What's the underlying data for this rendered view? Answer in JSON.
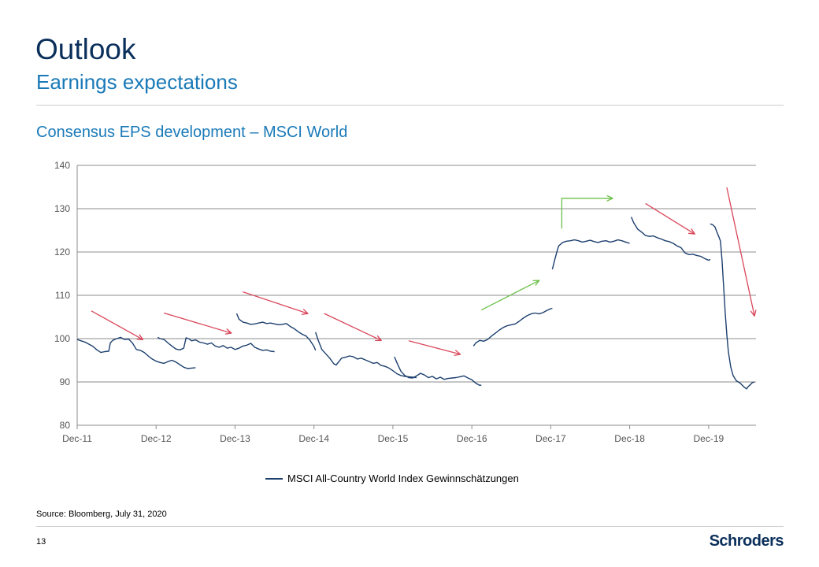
{
  "header": {
    "title": "Outlook",
    "subtitle": "Earnings expectations"
  },
  "chart_title": "Consensus EPS development – MSCI World",
  "chart_data": {
    "type": "line",
    "title": "Consensus EPS development – MSCI World",
    "xlabel": "",
    "ylabel": "",
    "ylim": [
      80,
      140
    ],
    "yticks": [
      80,
      90,
      100,
      110,
      120,
      130,
      140
    ],
    "xlim": [
      0,
      8.6
    ],
    "x_tick_labels": [
      "Dec-11",
      "Dec-12",
      "Dec-13",
      "Dec-14",
      "Dec-15",
      "Dec-16",
      "Dec-17",
      "Dec-18",
      "Dec-19"
    ],
    "grid": true,
    "legend": "bottom-center",
    "colors": {
      "line": "#1c3f6e",
      "up_arrow": "#6cc04a",
      "down_arrow": "#d9475a",
      "grid": "#8c8c8c"
    },
    "series": [
      {
        "name": "MSCI All-Country World Index Gewinnschätzungen",
        "segments": [
          [
            [
              0.0,
              99.8
            ],
            [
              0.05,
              99.5
            ],
            [
              0.1,
              99.2
            ],
            [
              0.15,
              98.7
            ],
            [
              0.2,
              98.2
            ],
            [
              0.25,
              97.4
            ],
            [
              0.3,
              96.8
            ],
            [
              0.35,
              97.0
            ],
            [
              0.4,
              97.1
            ],
            [
              0.42,
              99.0
            ],
            [
              0.45,
              99.6
            ],
            [
              0.5,
              100.0
            ],
            [
              0.55,
              100.3
            ],
            [
              0.6,
              99.8
            ],
            [
              0.65,
              99.9
            ],
            [
              0.7,
              99.0
            ],
            [
              0.75,
              97.5
            ],
            [
              0.8,
              97.3
            ],
            [
              0.85,
              96.8
            ],
            [
              0.9,
              96.0
            ],
            [
              0.95,
              95.3
            ],
            [
              1.0,
              94.8
            ],
            [
              1.05,
              94.5
            ],
            [
              1.1,
              94.3
            ],
            [
              1.15,
              94.7
            ],
            [
              1.2,
              95.0
            ],
            [
              1.25,
              94.6
            ],
            [
              1.3,
              94.0
            ],
            [
              1.35,
              93.4
            ],
            [
              1.4,
              93.1
            ],
            [
              1.45,
              93.2
            ],
            [
              1.5,
              93.3
            ]
          ],
          [
            [
              1.02,
              100.3
            ],
            [
              1.05,
              100.0
            ],
            [
              1.1,
              99.8
            ],
            [
              1.15,
              99.0
            ],
            [
              1.2,
              98.3
            ],
            [
              1.25,
              97.6
            ],
            [
              1.3,
              97.4
            ],
            [
              1.35,
              97.8
            ],
            [
              1.38,
              100.2
            ],
            [
              1.42,
              99.9
            ],
            [
              1.45,
              99.5
            ],
            [
              1.5,
              99.7
            ],
            [
              1.55,
              99.2
            ],
            [
              1.6,
              99.0
            ],
            [
              1.65,
              98.7
            ],
            [
              1.7,
              99.0
            ],
            [
              1.75,
              98.3
            ],
            [
              1.8,
              98.0
            ],
            [
              1.85,
              98.4
            ],
            [
              1.9,
              97.8
            ],
            [
              1.95,
              98.0
            ],
            [
              2.0,
              97.5
            ],
            [
              2.05,
              97.8
            ],
            [
              2.1,
              98.3
            ],
            [
              2.15,
              98.5
            ],
            [
              2.2,
              98.9
            ],
            [
              2.25,
              98.0
            ],
            [
              2.3,
              97.6
            ],
            [
              2.35,
              97.3
            ],
            [
              2.4,
              97.4
            ],
            [
              2.45,
              97.1
            ],
            [
              2.5,
              97.0
            ]
          ],
          [
            [
              2.02,
              105.8
            ],
            [
              2.05,
              104.5
            ],
            [
              2.1,
              103.8
            ],
            [
              2.15,
              103.6
            ],
            [
              2.2,
              103.3
            ],
            [
              2.25,
              103.4
            ],
            [
              2.3,
              103.6
            ],
            [
              2.35,
              103.8
            ],
            [
              2.4,
              103.5
            ],
            [
              2.45,
              103.6
            ],
            [
              2.5,
              103.4
            ],
            [
              2.55,
              103.2
            ],
            [
              2.6,
              103.3
            ],
            [
              2.65,
              103.5
            ],
            [
              2.7,
              102.8
            ],
            [
              2.75,
              102.3
            ],
            [
              2.8,
              101.6
            ],
            [
              2.85,
              101.0
            ],
            [
              2.9,
              100.6
            ],
            [
              2.95,
              99.6
            ],
            [
              3.0,
              98.2
            ],
            [
              3.02,
              97.3
            ]
          ],
          [
            [
              3.02,
              101.5
            ],
            [
              3.05,
              99.8
            ],
            [
              3.1,
              97.5
            ],
            [
              3.15,
              96.5
            ],
            [
              3.2,
              95.5
            ],
            [
              3.25,
              94.2
            ],
            [
              3.28,
              93.9
            ],
            [
              3.32,
              94.8
            ],
            [
              3.35,
              95.5
            ],
            [
              3.4,
              95.7
            ],
            [
              3.45,
              96.0
            ],
            [
              3.5,
              95.8
            ],
            [
              3.55,
              95.3
            ],
            [
              3.6,
              95.5
            ],
            [
              3.65,
              95.1
            ],
            [
              3.7,
              94.7
            ],
            [
              3.75,
              94.3
            ],
            [
              3.8,
              94.5
            ],
            [
              3.85,
              93.8
            ],
            [
              3.9,
              93.6
            ],
            [
              3.95,
              93.2
            ],
            [
              4.0,
              92.6
            ],
            [
              4.05,
              91.9
            ],
            [
              4.1,
              91.5
            ],
            [
              4.15,
              91.3
            ],
            [
              4.2,
              91.2
            ],
            [
              4.25,
              91.1
            ],
            [
              4.3,
              91.0
            ]
          ],
          [
            [
              4.02,
              95.8
            ],
            [
              4.05,
              94.5
            ],
            [
              4.1,
              92.5
            ],
            [
              4.15,
              91.5
            ],
            [
              4.2,
              91.0
            ],
            [
              4.25,
              90.9
            ],
            [
              4.3,
              91.4
            ],
            [
              4.35,
              92.0
            ],
            [
              4.4,
              91.6
            ],
            [
              4.45,
              91.0
            ],
            [
              4.5,
              91.3
            ],
            [
              4.55,
              90.7
            ],
            [
              4.6,
              91.1
            ],
            [
              4.65,
              90.6
            ],
            [
              4.7,
              90.8
            ],
            [
              4.75,
              90.9
            ],
            [
              4.8,
              91.0
            ],
            [
              4.85,
              91.2
            ],
            [
              4.9,
              91.4
            ],
            [
              4.95,
              90.9
            ],
            [
              5.0,
              90.5
            ],
            [
              5.05,
              89.7
            ],
            [
              5.1,
              89.2
            ],
            [
              5.12,
              89.3
            ]
          ],
          [
            [
              5.02,
              98.3
            ],
            [
              5.05,
              99.0
            ],
            [
              5.1,
              99.6
            ],
            [
              5.15,
              99.4
            ],
            [
              5.2,
              99.8
            ],
            [
              5.25,
              100.6
            ],
            [
              5.3,
              101.3
            ],
            [
              5.35,
              102.0
            ],
            [
              5.4,
              102.6
            ],
            [
              5.45,
              103.0
            ],
            [
              5.5,
              103.2
            ],
            [
              5.55,
              103.4
            ],
            [
              5.6,
              104.0
            ],
            [
              5.65,
              104.7
            ],
            [
              5.7,
              105.3
            ],
            [
              5.75,
              105.7
            ],
            [
              5.8,
              105.9
            ],
            [
              5.85,
              105.7
            ],
            [
              5.9,
              106.0
            ],
            [
              5.95,
              106.5
            ],
            [
              6.0,
              106.9
            ],
            [
              6.02,
              107.0
            ]
          ],
          [
            [
              6.02,
              116.0
            ],
            [
              6.05,
              118.2
            ],
            [
              6.08,
              120.2
            ],
            [
              6.1,
              121.4
            ],
            [
              6.15,
              122.2
            ],
            [
              6.2,
              122.5
            ],
            [
              6.25,
              122.6
            ],
            [
              6.3,
              122.8
            ],
            [
              6.35,
              122.6
            ],
            [
              6.4,
              122.3
            ],
            [
              6.45,
              122.5
            ],
            [
              6.5,
              122.7
            ],
            [
              6.55,
              122.4
            ],
            [
              6.6,
              122.2
            ],
            [
              6.65,
              122.5
            ],
            [
              6.7,
              122.6
            ],
            [
              6.75,
              122.3
            ],
            [
              6.8,
              122.5
            ],
            [
              6.85,
              122.8
            ],
            [
              6.9,
              122.6
            ],
            [
              6.95,
              122.3
            ],
            [
              7.0,
              122.0
            ]
          ],
          [
            [
              7.02,
              128.1
            ],
            [
              7.05,
              126.8
            ],
            [
              7.1,
              125.3
            ],
            [
              7.15,
              124.6
            ],
            [
              7.2,
              123.8
            ],
            [
              7.25,
              123.6
            ],
            [
              7.3,
              123.7
            ],
            [
              7.35,
              123.3
            ],
            [
              7.4,
              123.0
            ],
            [
              7.45,
              122.6
            ],
            [
              7.5,
              122.4
            ],
            [
              7.55,
              122.0
            ],
            [
              7.6,
              121.4
            ],
            [
              7.65,
              121.0
            ],
            [
              7.7,
              119.8
            ],
            [
              7.75,
              119.4
            ],
            [
              7.8,
              119.5
            ],
            [
              7.85,
              119.2
            ],
            [
              7.9,
              119.0
            ],
            [
              7.95,
              118.5
            ],
            [
              8.0,
              118.1
            ],
            [
              8.02,
              118.3
            ]
          ],
          [
            [
              8.02,
              126.5
            ],
            [
              8.05,
              126.3
            ],
            [
              8.08,
              125.8
            ],
            [
              8.1,
              124.8
            ],
            [
              8.13,
              123.5
            ],
            [
              8.15,
              122.5
            ],
            [
              8.17,
              118.0
            ],
            [
              8.19,
              112.0
            ],
            [
              8.21,
              106.0
            ],
            [
              8.23,
              101.0
            ],
            [
              8.25,
              97.0
            ],
            [
              8.28,
              93.5
            ],
            [
              8.31,
              91.5
            ],
            [
              8.35,
              90.3
            ],
            [
              8.4,
              89.7
            ],
            [
              8.45,
              88.8
            ],
            [
              8.48,
              88.4
            ],
            [
              8.5,
              88.9
            ],
            [
              8.53,
              89.4
            ],
            [
              8.55,
              89.8
            ],
            [
              8.58,
              90.0
            ]
          ]
        ]
      }
    ],
    "annotations": [
      {
        "kind": "arrow",
        "color": "down",
        "from": [
          0.18,
          106.4
        ],
        "to": [
          0.83,
          99.8
        ]
      },
      {
        "kind": "arrow",
        "color": "down",
        "from": [
          1.1,
          105.9
        ],
        "to": [
          1.95,
          101.3
        ]
      },
      {
        "kind": "arrow",
        "color": "down",
        "from": [
          2.1,
          110.8
        ],
        "to": [
          2.92,
          105.8
        ]
      },
      {
        "kind": "arrow",
        "color": "down",
        "from": [
          3.13,
          105.8
        ],
        "to": [
          3.85,
          99.6
        ]
      },
      {
        "kind": "arrow",
        "color": "down",
        "from": [
          4.2,
          99.5
        ],
        "to": [
          4.85,
          96.4
        ]
      },
      {
        "kind": "arrow",
        "color": "up",
        "from": [
          5.12,
          106.6
        ],
        "to": [
          5.85,
          113.4
        ]
      },
      {
        "kind": "elbow-arrow",
        "color": "up",
        "from": [
          6.14,
          125.4
        ],
        "corner": [
          6.14,
          132.4
        ],
        "to": [
          6.78,
          132.4
        ]
      },
      {
        "kind": "arrow",
        "color": "down",
        "from": [
          7.2,
          131.2
        ],
        "to": [
          7.82,
          124.2
        ]
      },
      {
        "kind": "arrow",
        "color": "down",
        "from": [
          8.23,
          134.9
        ],
        "to": [
          8.58,
          105.3
        ]
      }
    ]
  },
  "legend_label": "MSCI All-Country World Index Gewinnschätzungen",
  "source": "Source: Bloomberg, July 31, 2020",
  "page_number": "13",
  "logo": "Schroders"
}
